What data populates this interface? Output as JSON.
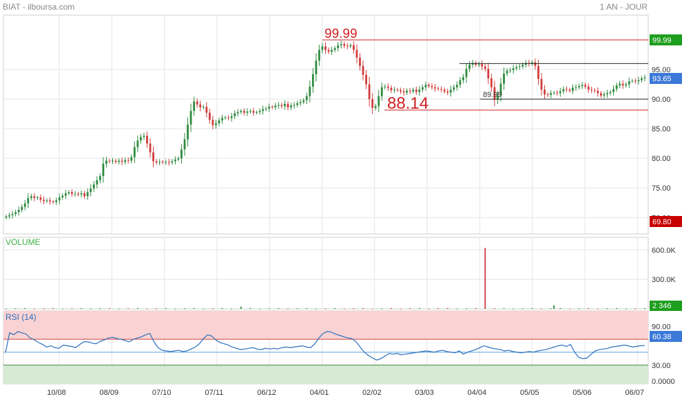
{
  "header": {
    "title": "BIAT - ilboursa.com",
    "period": "1 AN - JOUR"
  },
  "colors": {
    "up": "#2e8b3e",
    "down": "#d23b3b",
    "rsi_line": "#2a6ebd",
    "last_badge": "#3b79d8",
    "high_badge": "#1e9e1e",
    "low_badge": "#c80000",
    "grid": "#e4e4e4"
  },
  "chart_data": [
    {
      "type": "candlestick",
      "name": "price",
      "x_tick_labels": [
        "10/08",
        "08/09",
        "07/10",
        "07/11",
        "06/12",
        "04/01",
        "02/02",
        "03/03",
        "04/04",
        "05/05",
        "05/06",
        "06/07"
      ],
      "y_ticks": [
        70,
        75,
        80,
        85,
        90,
        95
      ],
      "y_tick_labels": [
        "70.00",
        "75.00",
        "80.00",
        "85.00",
        "90.00",
        "95.00"
      ],
      "ylim": [
        69.8,
        99.99
      ],
      "high_badge": "99.99",
      "low_badge": "69.80",
      "last_badge": "93.65",
      "annotations": [
        {
          "label": "99.99",
          "value": 99.99,
          "style": "red-line"
        },
        {
          "label": "88.14",
          "value": 88.14,
          "style": "red-line"
        },
        {
          "label": "",
          "value": 96.0,
          "style": "black-line"
        },
        {
          "label": "89.99",
          "value": 89.99,
          "style": "black-line"
        }
      ],
      "close": [
        70.2,
        70.4,
        70.6,
        70.9,
        71.3,
        71.8,
        72.4,
        73.3,
        73.6,
        73.3,
        73.4,
        73.0,
        72.8,
        72.9,
        72.7,
        72.6,
        72.9,
        73.4,
        73.7,
        74.1,
        74.3,
        74.0,
        74.0,
        73.9,
        74.1,
        73.6,
        74.3,
        74.9,
        75.6,
        76.3,
        77.0,
        79.1,
        79.6,
        79.5,
        79.6,
        79.4,
        79.6,
        79.4,
        79.7,
        79.6,
        80.2,
        81.9,
        83.0,
        83.6,
        83.8,
        82.5,
        81.0,
        79.5,
        79.3,
        79.4,
        79.3,
        79.4,
        79.3,
        79.5,
        79.8,
        80.0,
        81.5,
        83.2,
        85.7,
        88.0,
        89.6,
        89.1,
        88.6,
        88.7,
        87.7,
        86.5,
        85.6,
        85.9,
        86.4,
        86.8,
        86.9,
        86.8,
        87.1,
        87.6,
        87.8,
        88.0,
        87.7,
        87.9,
        88.0,
        87.7,
        87.8,
        88.0,
        88.3,
        88.4,
        88.7,
        88.6,
        88.9,
        89.0,
        88.8,
        89.2,
        88.6,
        88.9,
        89.0,
        89.3,
        89.5,
        89.8,
        90.5,
        92.1,
        94.2,
        96.5,
        98.3,
        98.9,
        98.3,
        98.0,
        98.3,
        98.6,
        99.1,
        99.3,
        99.0,
        98.9,
        99.1,
        98.3,
        97.0,
        95.6,
        94.1,
        92.5,
        90.0,
        88.5,
        88.8,
        90.5,
        92.0,
        92.1,
        91.9,
        91.5,
        91.6,
        91.5,
        91.3,
        91.1,
        91.4,
        91.3,
        91.6,
        91.2,
        91.6,
        92.0,
        92.4,
        92.2,
        92.0,
        91.8,
        91.7,
        91.6,
        91.3,
        91.1,
        91.6,
        92.0,
        92.4,
        93.2,
        93.7,
        95.1,
        95.8,
        96.1,
        95.8,
        95.9,
        95.5,
        95.1,
        93.5,
        92.0,
        89.9,
        90.6,
        92.6,
        94.3,
        94.8,
        94.9,
        95.2,
        95.4,
        95.5,
        95.8,
        96.1,
        96.0,
        96.2,
        95.6,
        93.4,
        91.6,
        90.8,
        90.7,
        91.0,
        91.1,
        91.0,
        91.3,
        91.7,
        91.6,
        91.4,
        91.9,
        92.0,
        92.2,
        92.4,
        92.1,
        91.6,
        91.5,
        91.4,
        91.0,
        90.6,
        90.8,
        91.0,
        91.2,
        91.7,
        92.3,
        92.6,
        92.3,
        92.5,
        93.0,
        93.1,
        93.0,
        93.2,
        93.5,
        93.65
      ]
    },
    {
      "type": "bar",
      "name": "VOLUME",
      "y_ticks": [
        300000,
        600000
      ],
      "y_tick_labels": [
        "300.0K",
        "600.0K"
      ],
      "ylim": [
        0,
        700000
      ],
      "last_badge": "2 346",
      "spikes": [
        {
          "index": 75,
          "value": 22000
        },
        {
          "index": 153,
          "value": 620000
        },
        {
          "index": 175,
          "value": 38000
        },
        {
          "index": 209,
          "value": 28000
        },
        {
          "index": 224,
          "value": 33000
        },
        {
          "index": 263,
          "value": 24000
        }
      ]
    },
    {
      "type": "line",
      "name": "RSI (14)",
      "title": "RSI (14)",
      "y_ticks": [
        30,
        90
      ],
      "y_tick_labels": [
        "30.00",
        "90.00"
      ],
      "bottom_tick_label": "0.0000",
      "overbought": 70,
      "oversold": 30,
      "midline": 50,
      "last_badge": "60.38",
      "values": [
        50,
        80,
        77,
        82,
        80,
        78,
        72,
        69,
        65,
        62,
        58,
        60,
        57,
        56,
        61,
        60,
        59,
        57,
        62,
        66,
        66,
        64,
        63,
        67,
        69,
        72,
        73,
        71,
        70,
        68,
        66,
        70,
        72,
        74,
        77,
        79,
        66,
        57,
        53,
        52,
        51,
        52,
        53,
        51,
        52,
        55,
        58,
        63,
        71,
        77,
        75,
        69,
        65,
        63,
        61,
        58,
        56,
        54,
        55,
        56,
        57,
        55,
        54,
        56,
        55,
        56,
        55,
        57,
        58,
        57,
        58,
        59,
        60,
        58,
        57,
        63,
        72,
        79,
        82,
        81,
        78,
        76,
        74,
        72,
        71,
        66,
        58,
        50,
        45,
        41,
        38,
        40,
        44,
        48,
        47,
        48,
        46,
        47,
        48,
        49,
        50,
        51,
        52,
        51,
        50,
        52,
        53,
        51,
        50,
        49,
        52,
        47,
        50,
        52,
        54,
        57,
        60,
        58,
        56,
        55,
        54,
        52,
        53,
        51,
        50,
        49,
        50,
        51,
        50,
        52,
        53,
        54,
        56,
        58,
        60,
        61,
        59,
        62,
        50,
        42,
        40,
        41,
        47,
        52,
        54,
        55,
        56,
        58,
        59,
        60,
        61,
        60,
        58,
        59,
        60,
        60.38
      ]
    }
  ]
}
